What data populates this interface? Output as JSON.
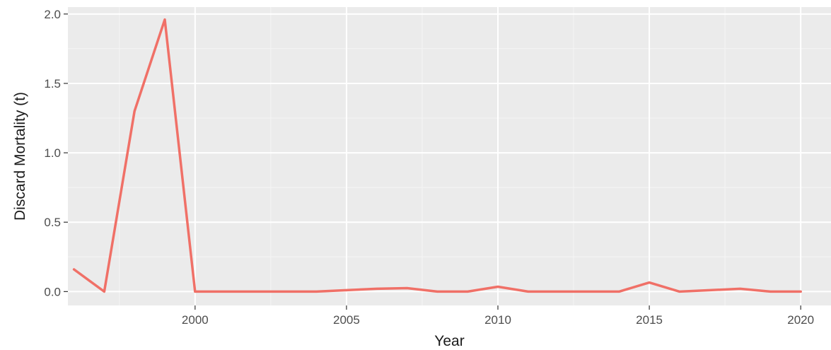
{
  "chart_data": {
    "type": "line",
    "xlabel": "Year",
    "ylabel": "Discard Mortality (t)",
    "xlim": [
      1995.8,
      2021.0
    ],
    "ylim": [
      -0.1,
      2.05
    ],
    "x_ticks": [
      2000,
      2005,
      2010,
      2015,
      2020
    ],
    "y_ticks": [
      0.0,
      0.5,
      1.0,
      1.5,
      2.0
    ],
    "y_tick_labels": [
      "0.0",
      "0.5",
      "1.0",
      "1.5",
      "2.0"
    ],
    "grid": true,
    "colors": {
      "panel": "#ebebeb",
      "grid_major": "#ffffff",
      "grid_minor": "#f5f5f5",
      "line": "#f07067",
      "tick": "#333333"
    },
    "series": [
      {
        "x": [
          1996,
          1997,
          1998,
          1999,
          2000,
          2001,
          2002,
          2003,
          2004,
          2005,
          2006,
          2007,
          2008,
          2009,
          2010,
          2011,
          2012,
          2013,
          2014,
          2015,
          2016,
          2017,
          2018,
          2019,
          2020
        ],
        "values": [
          0.16,
          0.0,
          1.3,
          1.96,
          0.0,
          0.0,
          0.0,
          0.0,
          0.0,
          0.01,
          0.02,
          0.025,
          0.0,
          0.0,
          0.035,
          0.0,
          0.0,
          0.0,
          0.0,
          0.065,
          0.0,
          0.01,
          0.02,
          0.0,
          0.0
        ]
      }
    ]
  }
}
